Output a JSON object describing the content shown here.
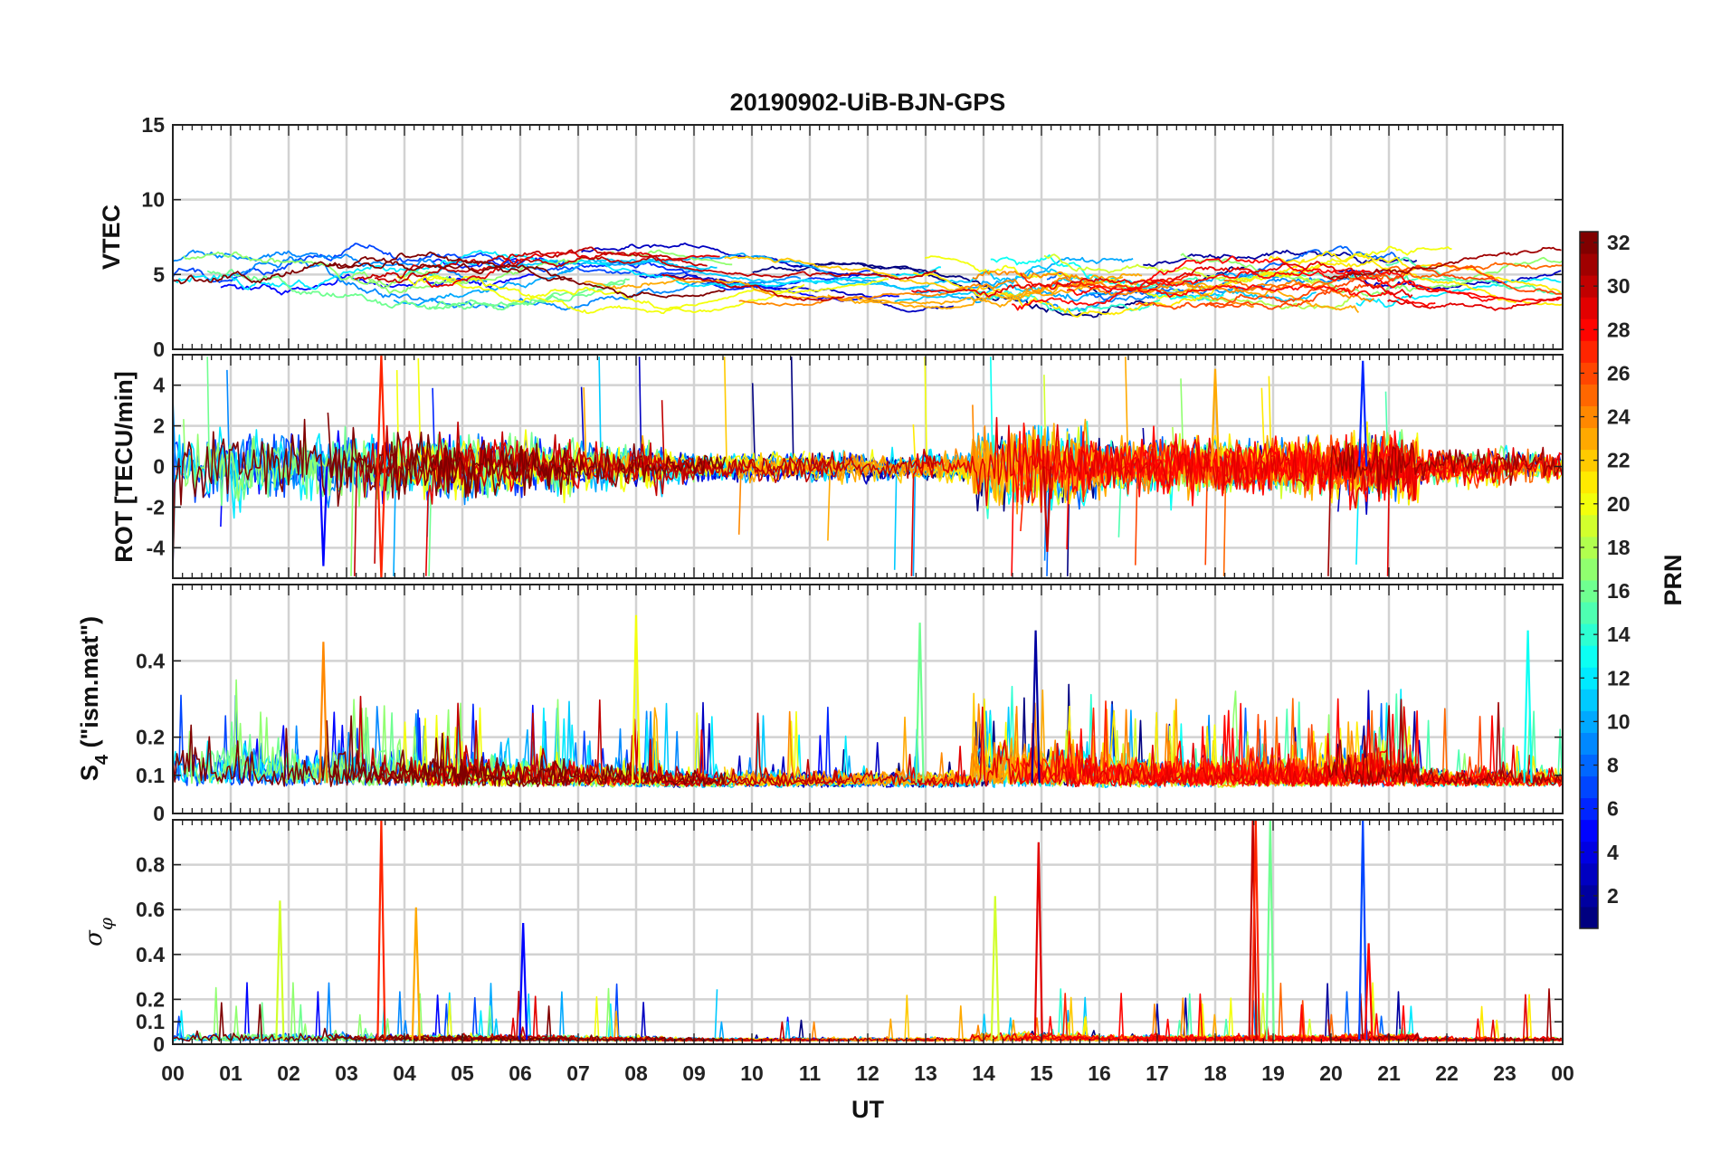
{
  "chart_data": {
    "type": "line",
    "title": "20190902-UiB-BJN-GPS",
    "xlabel": "UT",
    "x_ticks": [
      "00",
      "01",
      "02",
      "03",
      "04",
      "05",
      "06",
      "07",
      "08",
      "09",
      "10",
      "11",
      "12",
      "13",
      "14",
      "15",
      "16",
      "17",
      "18",
      "19",
      "20",
      "21",
      "22",
      "23",
      "00"
    ],
    "xlim_hours": [
      0,
      24
    ],
    "grid": true,
    "panels": [
      {
        "id": "vtec",
        "ylabel": "VTEC",
        "ylim": [
          0,
          15
        ],
        "yticks": [
          0,
          5,
          10,
          15
        ],
        "yticklabels": [
          "0",
          "5",
          "10",
          "15"
        ]
      },
      {
        "id": "rot",
        "ylabel": "ROT [TECU/min]",
        "ylim": [
          -5.5,
          5.5
        ],
        "yticks": [
          -4,
          -2,
          0,
          2,
          4
        ],
        "yticklabels": [
          "-4",
          "-2",
          "0",
          "2",
          "4"
        ]
      },
      {
        "id": "s4",
        "ylabel_main": "S",
        "ylabel_sub": "4",
        "ylabel_tail": " (\"ism.mat\")",
        "ylim": [
          0,
          0.6
        ],
        "yticks": [
          0,
          0.1,
          0.2,
          0.4
        ],
        "yticklabels": [
          "0",
          "0.1",
          "0.2",
          "0.4"
        ]
      },
      {
        "id": "sigphi",
        "ylabel_main": "σ",
        "ylabel_sub": "φ",
        "ylim": [
          0,
          1
        ],
        "yticks": [
          0,
          0.1,
          0.2,
          0.4,
          0.6,
          0.8
        ],
        "yticklabels": [
          "0",
          "0.1",
          "0.2",
          "0.4",
          "0.6",
          "0.8"
        ]
      }
    ],
    "colorbar": {
      "label": "PRN",
      "range": [
        1,
        32
      ],
      "ticks": [
        2,
        4,
        6,
        8,
        10,
        12,
        14,
        16,
        18,
        20,
        22,
        24,
        26,
        28,
        30,
        32
      ],
      "ticklabels": [
        "2",
        "4",
        "6",
        "8",
        "10",
        "12",
        "14",
        "16",
        "18",
        "20",
        "22",
        "24",
        "26",
        "28",
        "30",
        "32"
      ],
      "colormap": "jet"
    },
    "series_prn": [
      1,
      2,
      3,
      5,
      6,
      7,
      8,
      9,
      10,
      11,
      12,
      13,
      14,
      15,
      16,
      17,
      18,
      19,
      20,
      21,
      22,
      23,
      24,
      25,
      26,
      27,
      28,
      29,
      30,
      31,
      32
    ],
    "spikes": {
      "rot": [
        {
          "x": 3.6,
          "y": 5.5,
          "prn": 27
        },
        {
          "x": 3.6,
          "y": -5.5,
          "prn": 27
        },
        {
          "x": 2.6,
          "y": -4.9,
          "prn": 5
        },
        {
          "x": 18.0,
          "y": 4.8,
          "prn": 23
        },
        {
          "x": 20.55,
          "y": 5.2,
          "prn": 6
        },
        {
          "x": 15.1,
          "y": -4.2,
          "prn": 30
        }
      ],
      "s4": [
        {
          "x": 8.0,
          "y": 0.52,
          "prn": 20
        },
        {
          "x": 14.9,
          "y": 0.48,
          "prn": 2
        },
        {
          "x": 12.9,
          "y": 0.5,
          "prn": 16
        },
        {
          "x": 23.4,
          "y": 0.48,
          "prn": 13
        },
        {
          "x": 2.6,
          "y": 0.45,
          "prn": 24
        }
      ],
      "sigphi": [
        {
          "x": 3.6,
          "y": 1.0,
          "prn": 27
        },
        {
          "x": 4.2,
          "y": 0.61,
          "prn": 23
        },
        {
          "x": 1.85,
          "y": 0.64,
          "prn": 19
        },
        {
          "x": 6.05,
          "y": 0.54,
          "prn": 5
        },
        {
          "x": 14.2,
          "y": 0.66,
          "prn": 19
        },
        {
          "x": 14.95,
          "y": 0.9,
          "prn": 29
        },
        {
          "x": 18.65,
          "y": 1.0,
          "prn": 30
        },
        {
          "x": 18.7,
          "y": 1.0,
          "prn": 27
        },
        {
          "x": 18.95,
          "y": 1.0,
          "prn": 16
        },
        {
          "x": 20.55,
          "y": 1.0,
          "prn": 7
        },
        {
          "x": 20.65,
          "y": 0.45,
          "prn": 28
        }
      ]
    }
  }
}
